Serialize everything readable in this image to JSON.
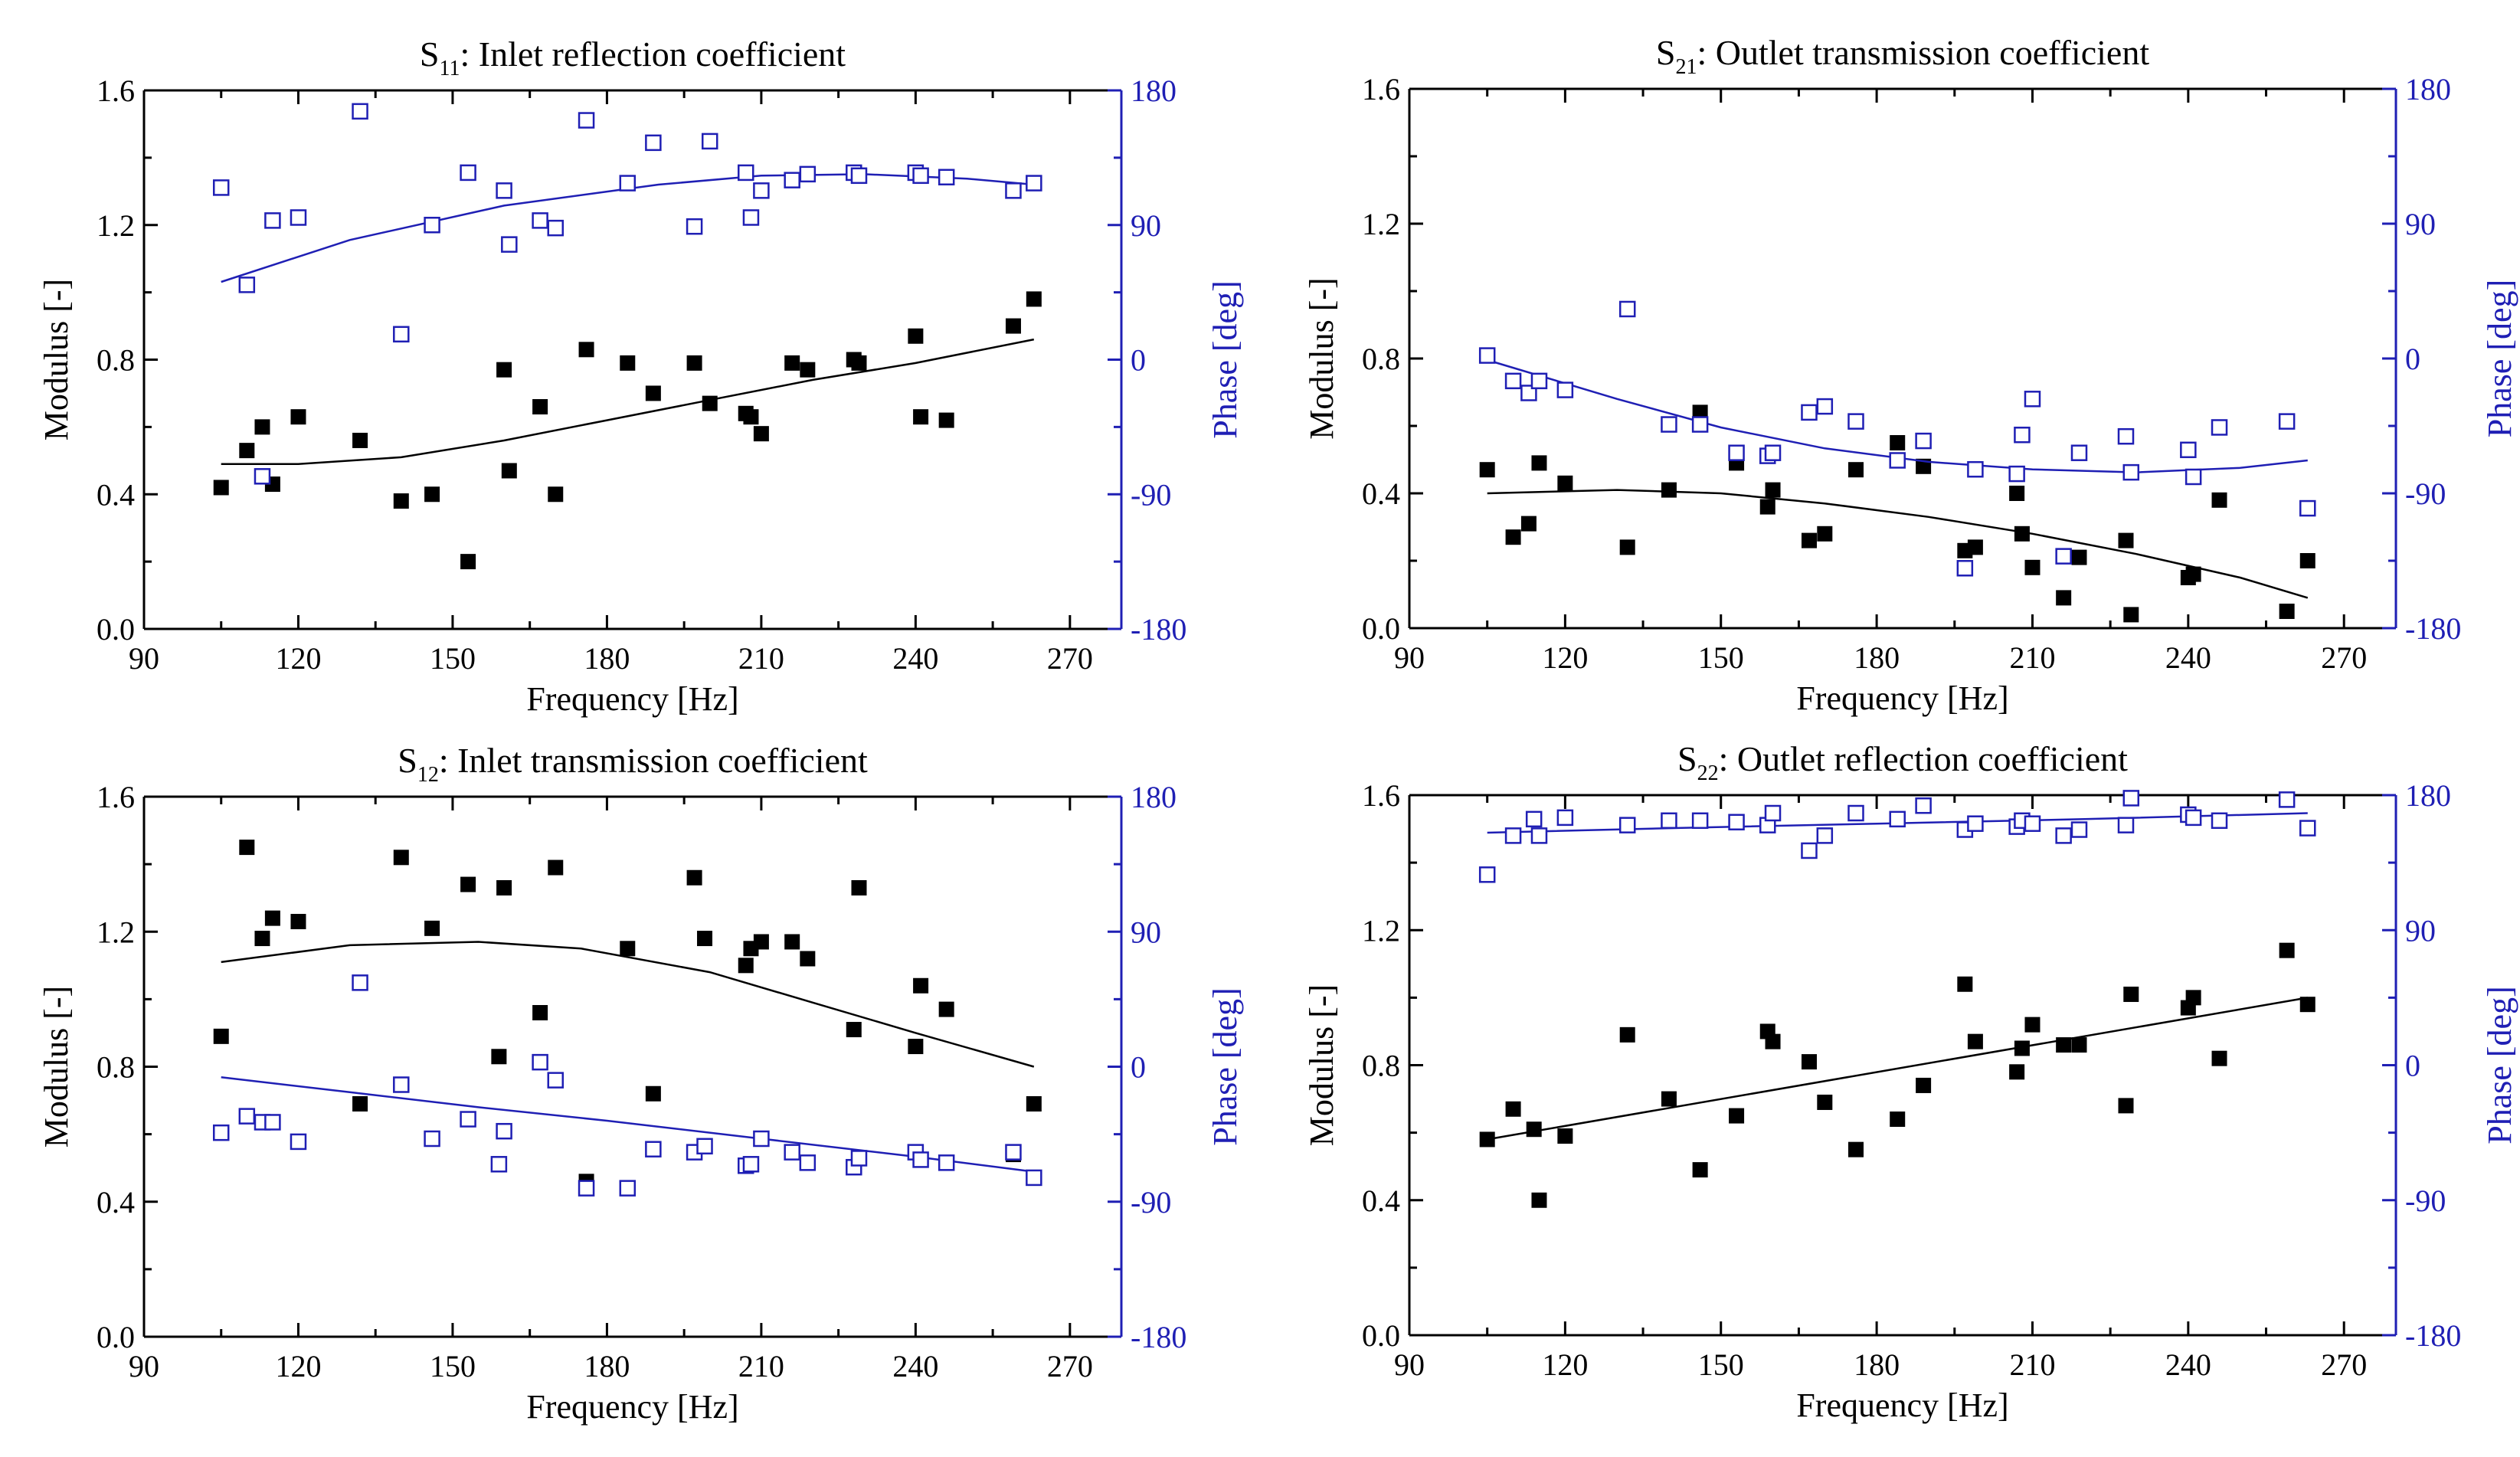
{
  "figure": {
    "colors": {
      "modulus": "#000000",
      "phase": "#1f1fb4",
      "axis": "#000000",
      "phase_axis": "#1f1fb4"
    }
  },
  "chart_data": [
    {
      "type": "scatter",
      "title": {
        "main": "S",
        "sub": "11",
        "rest": ": Inlet reflection coefficient"
      },
      "xlabel": "Frequency [Hz]",
      "ylabel": "Modulus [-]",
      "y2label": "Phase [deg]",
      "xlim": [
        90,
        280
      ],
      "xticks": [
        "90",
        "120",
        "150",
        "180",
        "210",
        "240",
        "270"
      ],
      "ylim": [
        0,
        1.6
      ],
      "yticks": [
        "0.0",
        "0.4",
        "0.8",
        "1.2",
        "1.6"
      ],
      "y2lim": [
        -180,
        180
      ],
      "y2ticks": [
        "-180",
        "-90",
        "0",
        "90",
        "180"
      ],
      "x": [
        105,
        110,
        113,
        115,
        120,
        132,
        140,
        146,
        153,
        160,
        161,
        167,
        170,
        176,
        184,
        189,
        197,
        200,
        207,
        208,
        210,
        216,
        219,
        228,
        229,
        240,
        241,
        246,
        259,
        263
      ],
      "series": [
        {
          "name": "Modulus",
          "axis": "left",
          "marker": "filled-square",
          "values": [
            0.42,
            0.53,
            0.6,
            0.43,
            0.63,
            0.56,
            0.38,
            0.4,
            0.2,
            0.77,
            0.47,
            0.66,
            0.4,
            0.83,
            0.79,
            0.7,
            0.79,
            0.67,
            0.64,
            0.63,
            0.58,
            0.79,
            0.77,
            0.8,
            0.79,
            0.87,
            0.63,
            0.62,
            0.9,
            0.98
          ],
          "fit": [
            [
              105,
              0.49
            ],
            [
              120,
              0.49
            ],
            [
              140,
              0.51
            ],
            [
              160,
              0.56
            ],
            [
              180,
              0.62
            ],
            [
              200,
              0.68
            ],
            [
              220,
              0.74
            ],
            [
              240,
              0.79
            ],
            [
              263,
              0.86
            ]
          ]
        },
        {
          "name": "Phase",
          "axis": "right",
          "marker": "open-square",
          "values": [
            115,
            50,
            -78,
            93,
            95,
            166,
            17,
            90,
            125,
            113,
            77,
            93,
            88,
            160,
            118,
            145,
            89,
            146,
            125,
            95,
            113,
            120,
            124,
            125,
            123,
            125,
            123,
            122,
            113,
            118
          ],
          "fit": [
            [
              105,
              52
            ],
            [
              130,
              80
            ],
            [
              160,
              103
            ],
            [
              190,
              117
            ],
            [
              210,
              123
            ],
            [
              230,
              124
            ],
            [
              250,
              121
            ],
            [
              263,
              117
            ]
          ]
        }
      ]
    },
    {
      "type": "scatter",
      "title": {
        "main": "S",
        "sub": "21",
        "rest": ": Outlet transmission coefficient"
      },
      "xlabel": "Frequency [Hz]",
      "ylabel": "Modulus [-]",
      "y2label": "Phase [deg]",
      "xlim": [
        90,
        280
      ],
      "xticks": [
        "90",
        "120",
        "150",
        "180",
        "210",
        "240",
        "270"
      ],
      "ylim": [
        0,
        1.6
      ],
      "yticks": [
        "0.0",
        "0.4",
        "0.8",
        "1.2",
        "1.6"
      ],
      "y2lim": [
        -180,
        180
      ],
      "y2ticks": [
        "-180",
        "-90",
        "0",
        "90",
        "180"
      ],
      "x": [
        105,
        110,
        113,
        115,
        120,
        132,
        140,
        146,
        153,
        159,
        160,
        167,
        170,
        176,
        184,
        189,
        197,
        199,
        207,
        208,
        210,
        216,
        219,
        228,
        229,
        240,
        241,
        246,
        259,
        263
      ],
      "series": [
        {
          "name": "Modulus",
          "axis": "left",
          "marker": "filled-square",
          "values": [
            0.47,
            0.27,
            0.31,
            0.49,
            0.43,
            0.24,
            0.41,
            0.64,
            0.49,
            0.36,
            0.41,
            0.26,
            0.28,
            0.47,
            0.55,
            0.48,
            0.23,
            0.24,
            0.4,
            0.28,
            0.18,
            0.09,
            0.21,
            0.26,
            0.04,
            0.15,
            0.16,
            0.38,
            0.05,
            0.2
          ],
          "fit": [
            [
              105,
              0.4
            ],
            [
              130,
              0.41
            ],
            [
              150,
              0.4
            ],
            [
              170,
              0.37
            ],
            [
              190,
              0.33
            ],
            [
              210,
              0.28
            ],
            [
              230,
              0.22
            ],
            [
              250,
              0.15
            ],
            [
              263,
              0.09
            ]
          ]
        },
        {
          "name": "Phase",
          "axis": "right",
          "marker": "open-square",
          "values": [
            2,
            -15,
            -23,
            -15,
            -21,
            33,
            -44,
            -44,
            -63,
            -65,
            -63,
            -36,
            -32,
            -42,
            -68,
            -55,
            -140,
            -74,
            -77,
            -51,
            -27,
            -132,
            -63,
            -52,
            -76,
            -61,
            -79,
            -46,
            -42,
            -100
          ],
          "fit": [
            [
              105,
              -1
            ],
            [
              130,
              -27
            ],
            [
              150,
              -46
            ],
            [
              170,
              -60
            ],
            [
              190,
              -69
            ],
            [
              210,
              -74
            ],
            [
              230,
              -76
            ],
            [
              250,
              -73
            ],
            [
              263,
              -68
            ]
          ]
        }
      ]
    },
    {
      "type": "scatter",
      "title": {
        "main": "S",
        "sub": "12",
        "rest": ": Inlet transmission coefficient"
      },
      "xlabel": "Frequency [Hz]",
      "ylabel": "Modulus [-]",
      "y2label": "Phase [deg]",
      "xlim": [
        90,
        280
      ],
      "xticks": [
        "90",
        "120",
        "150",
        "180",
        "210",
        "240",
        "270"
      ],
      "ylim": [
        0,
        1.6
      ],
      "yticks": [
        "0.0",
        "0.4",
        "0.8",
        "1.2",
        "1.6"
      ],
      "y2lim": [
        -180,
        180
      ],
      "y2ticks": [
        "-180",
        "-90",
        "0",
        "90",
        "180"
      ],
      "x": [
        105,
        110,
        113,
        115,
        120,
        132,
        140,
        146,
        153,
        159,
        160,
        167,
        170,
        176,
        184,
        189,
        197,
        199,
        207,
        208,
        210,
        216,
        219,
        228,
        229,
        240,
        241,
        246,
        259,
        263
      ],
      "series": [
        {
          "name": "Modulus",
          "axis": "left",
          "marker": "filled-square",
          "values": [
            0.89,
            1.45,
            1.18,
            1.24,
            1.23,
            0.69,
            1.42,
            1.21,
            1.34,
            0.83,
            1.33,
            0.96,
            1.39,
            0.46,
            1.15,
            0.72,
            1.36,
            1.18,
            1.1,
            1.15,
            1.17,
            1.17,
            1.12,
            0.91,
            1.33,
            0.86,
            1.04,
            0.97,
            0.54,
            0.69
          ],
          "fit": [
            [
              105,
              1.11
            ],
            [
              130,
              1.16
            ],
            [
              155,
              1.17
            ],
            [
              175,
              1.15
            ],
            [
              200,
              1.08
            ],
            [
              220,
              0.99
            ],
            [
              240,
              0.9
            ],
            [
              263,
              0.8
            ]
          ]
        },
        {
          "name": "Phase",
          "axis": "right",
          "marker": "open-square",
          "values": [
            -44,
            -33,
            -37,
            -37,
            -50,
            56,
            -12,
            -48,
            -35,
            -65,
            -43,
            3,
            -9,
            -81,
            -81,
            -55,
            -57,
            -53,
            -66,
            -65,
            -48,
            -57,
            -64,
            -67,
            -61,
            -57,
            -62,
            -64,
            -57,
            -74
          ],
          "fit": [
            [
              105,
              -7
            ],
            [
              130,
              -17
            ],
            [
              155,
              -27
            ],
            [
              180,
              -36
            ],
            [
              210,
              -48
            ],
            [
              240,
              -60
            ],
            [
              263,
              -70
            ]
          ]
        }
      ]
    },
    {
      "type": "scatter",
      "title": {
        "main": "S",
        "sub": "22",
        "rest": ": Outlet reflection coefficient"
      },
      "xlabel": "Frequency [Hz]",
      "ylabel": "Modulus [-]",
      "y2label": "Phase [deg]",
      "xlim": [
        90,
        280
      ],
      "xticks": [
        "90",
        "120",
        "150",
        "180",
        "210",
        "240",
        "270"
      ],
      "ylim": [
        0,
        1.6
      ],
      "yticks": [
        "0.0",
        "0.4",
        "0.8",
        "1.2",
        "1.6"
      ],
      "y2lim": [
        -180,
        180
      ],
      "y2ticks": [
        "-180",
        "-90",
        "0",
        "90",
        "180"
      ],
      "x": [
        105,
        110,
        114,
        115,
        120,
        132,
        140,
        146,
        153,
        159,
        160,
        167,
        170,
        176,
        184,
        189,
        197,
        199,
        207,
        208,
        210,
        216,
        219,
        228,
        229,
        240,
        241,
        246,
        259,
        263
      ],
      "series": [
        {
          "name": "Modulus",
          "axis": "left",
          "marker": "filled-square",
          "values": [
            0.58,
            0.67,
            0.61,
            0.4,
            0.59,
            0.89,
            0.7,
            0.49,
            0.65,
            0.9,
            0.87,
            0.81,
            0.69,
            0.55,
            0.64,
            0.74,
            1.04,
            0.87,
            0.78,
            0.85,
            0.92,
            0.86,
            0.86,
            0.68,
            1.01,
            0.97,
            1.0,
            0.82,
            1.14,
            0.98
          ],
          "fit": [
            [
              105,
              0.58
            ],
            [
              263,
              1.0
            ]
          ]
        },
        {
          "name": "Phase",
          "axis": "right",
          "marker": "open-square",
          "values": [
            127,
            153,
            164,
            153,
            165,
            160,
            163,
            163,
            162,
            160,
            168,
            143,
            153,
            168,
            164,
            173,
            157,
            161,
            159,
            163,
            161,
            153,
            157,
            160,
            178,
            167,
            165,
            163,
            177,
            158
          ],
          "fit": [
            [
              105,
              155
            ],
            [
              140,
              158
            ],
            [
              180,
              161
            ],
            [
              220,
              164
            ],
            [
              263,
              168
            ]
          ]
        }
      ]
    }
  ]
}
